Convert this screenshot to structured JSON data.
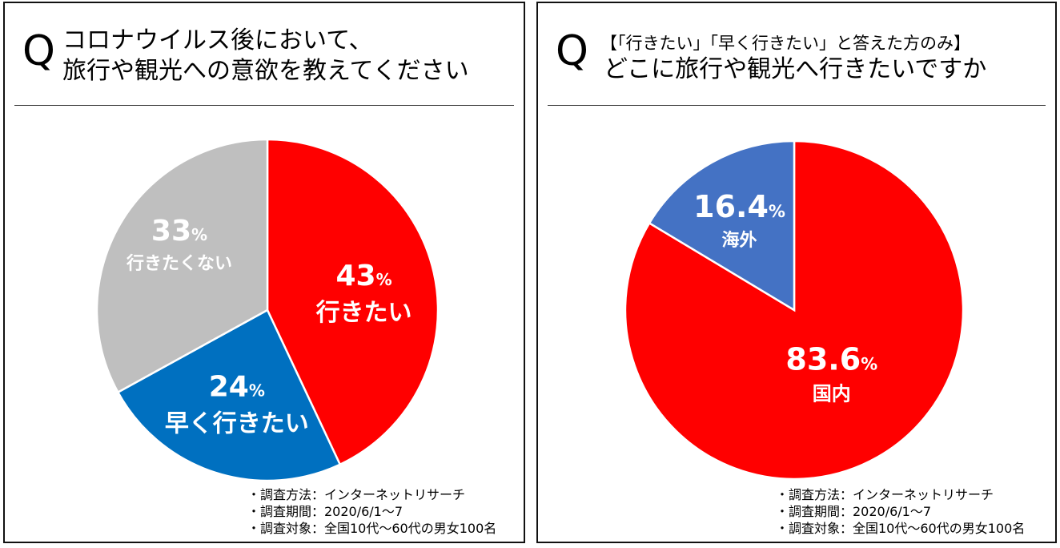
{
  "panels": [
    {
      "q_mark": "Q",
      "title_lines": [
        "コロナウイルス後において、",
        "旅行や観光への意欲を教えてください"
      ],
      "notes": [
        "・調査方法：インターネットリサーチ",
        "・調査期間：2020/6/1～7",
        "・調査対象：全国10代～60代の男女100名"
      ]
    },
    {
      "q_mark": "Q",
      "subtitle": "【「行きたい」「早く行きたい」と答えた方のみ】",
      "title_lines": [
        "どこに旅行や観光へ行きたいですか"
      ],
      "notes": [
        "・調査方法：インターネットリサーチ",
        "・調査期間：2020/6/1～7",
        "・調査対象：全国10代～60代の男女100名"
      ]
    }
  ],
  "chart_data": [
    {
      "type": "pie",
      "direction": "clockwise from top",
      "slices": [
        {
          "label": "行きたい",
          "value": 43,
          "display": "43",
          "unit": "%",
          "color": "#FF0000"
        },
        {
          "label": "早く行きたい",
          "value": 24,
          "display": "24",
          "unit": "%",
          "color": "#0070C0"
        },
        {
          "label": "行きたくない",
          "value": 33,
          "display": "33",
          "unit": "%",
          "color": "#BFBFBF"
        }
      ]
    },
    {
      "type": "pie",
      "direction": "clockwise from top",
      "slices": [
        {
          "label": "国内",
          "value": 83.6,
          "display": "83.6",
          "unit": "%",
          "color": "#FF0000"
        },
        {
          "label": "海外",
          "value": 16.4,
          "display": "16.4",
          "unit": "%",
          "color": "#4472C4"
        }
      ]
    }
  ]
}
